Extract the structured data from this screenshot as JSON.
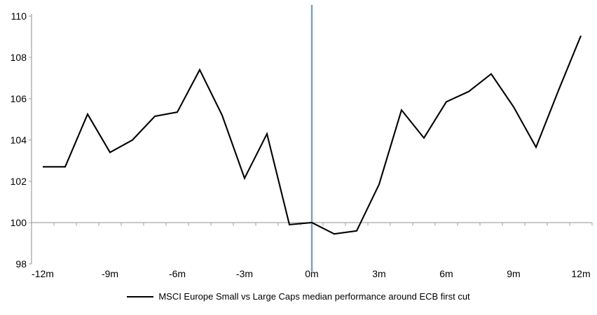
{
  "chart_data": {
    "type": "line",
    "title": "",
    "months": [
      -12,
      -11,
      -10,
      -9,
      -8,
      -7,
      -6,
      -5,
      -4,
      -3,
      -2,
      -1,
      0,
      1,
      2,
      3,
      4,
      5,
      6,
      7,
      8,
      9,
      10,
      11,
      12
    ],
    "series": [
      {
        "name": "MSCI Europe Small vs Large Caps median performance around ECB first cut",
        "values": [
          102.7,
          102.7,
          105.25,
          103.4,
          104.0,
          105.15,
          105.35,
          107.4,
          105.2,
          102.15,
          104.3,
          99.9,
          100.0,
          99.45,
          99.6,
          101.85,
          105.45,
          104.1,
          105.85,
          106.35,
          107.2,
          105.6,
          103.65,
          106.4,
          109.05
        ]
      }
    ],
    "x_tick_labels": [
      "-12m",
      "-9m",
      "-6m",
      "-3m",
      "0m",
      "3m",
      "6m",
      "9m",
      "12m"
    ],
    "x_tick_months": [
      -12,
      -9,
      -6,
      -3,
      0,
      3,
      6,
      9,
      12
    ],
    "y_ticks": [
      98,
      100,
      102,
      104,
      106,
      108,
      110
    ],
    "ylim": [
      98,
      110
    ],
    "xlim_months": [
      -12,
      12
    ],
    "axis_cross_value": 100,
    "event_line_month": 0,
    "grid": "off",
    "legend_position": "bottom-center",
    "colors": {
      "series_line": "#000000",
      "event_line": "#74a2ce",
      "axis": "#a6a6a6",
      "text": "#000000",
      "background": "#ffffff"
    }
  }
}
